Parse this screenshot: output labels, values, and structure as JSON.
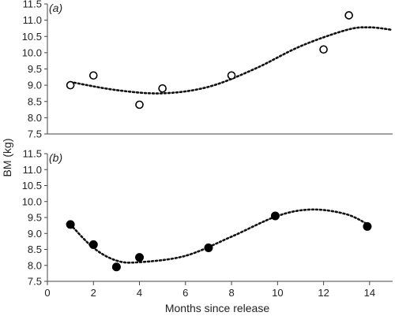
{
  "chart_data": {
    "type": "scatter",
    "xlabel": "Months since release",
    "ylabel": "BM (kg)",
    "xlim": [
      0,
      15
    ],
    "xticks": [
      0,
      2,
      4,
      6,
      8,
      10,
      12,
      14
    ],
    "ylim": [
      7.5,
      11.5
    ],
    "yticks": [
      "7.5",
      "8.0",
      "8.5",
      "9.0",
      "9.5",
      "10.0",
      "10.5",
      "11.0",
      "11.5"
    ],
    "grid": false,
    "panels": [
      {
        "label": "a",
        "marker": "open-circle",
        "points": [
          {
            "x": 1,
            "y": 9.0
          },
          {
            "x": 2,
            "y": 9.3
          },
          {
            "x": 4,
            "y": 8.4
          },
          {
            "x": 5,
            "y": 8.9
          },
          {
            "x": 8,
            "y": 9.3
          },
          {
            "x": 12,
            "y": 10.1
          },
          {
            "x": 13.1,
            "y": 11.15
          }
        ],
        "trend": [
          {
            "x": 1,
            "y": 9.1
          },
          {
            "x": 3,
            "y": 8.85
          },
          {
            "x": 5,
            "y": 8.75
          },
          {
            "x": 7,
            "y": 8.95
          },
          {
            "x": 9,
            "y": 9.5
          },
          {
            "x": 11,
            "y": 10.2
          },
          {
            "x": 13,
            "y": 10.7
          },
          {
            "x": 14,
            "y": 10.78
          },
          {
            "x": 15,
            "y": 10.7
          }
        ]
      },
      {
        "label": "b",
        "marker": "filled-circle",
        "points": [
          {
            "x": 1,
            "y": 9.28
          },
          {
            "x": 2,
            "y": 8.65
          },
          {
            "x": 3,
            "y": 7.95
          },
          {
            "x": 4,
            "y": 8.25
          },
          {
            "x": 7,
            "y": 8.55
          },
          {
            "x": 9.9,
            "y": 9.55
          },
          {
            "x": 13.9,
            "y": 9.22
          }
        ],
        "trend": [
          {
            "x": 1,
            "y": 9.28
          },
          {
            "x": 2,
            "y": 8.55
          },
          {
            "x": 3,
            "y": 8.15
          },
          {
            "x": 4,
            "y": 8.1
          },
          {
            "x": 6,
            "y": 8.3
          },
          {
            "x": 8,
            "y": 8.9
          },
          {
            "x": 10,
            "y": 9.55
          },
          {
            "x": 11.5,
            "y": 9.75
          },
          {
            "x": 13,
            "y": 9.6
          },
          {
            "x": 14,
            "y": 9.25
          }
        ]
      }
    ]
  }
}
